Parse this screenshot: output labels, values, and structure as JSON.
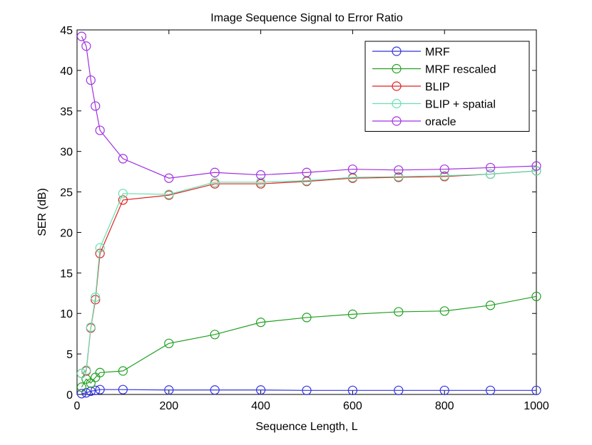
{
  "chart_data": {
    "type": "line",
    "title": "Image Sequence Signal to Error Ratio",
    "xlabel": "Sequence Length, L",
    "ylabel": "SER (dB)",
    "xlim": [
      0,
      1000
    ],
    "ylim": [
      0,
      45
    ],
    "xticks": [
      0,
      200,
      400,
      600,
      800,
      1000
    ],
    "yticks": [
      0,
      5,
      10,
      15,
      20,
      25,
      30,
      35,
      40,
      45
    ],
    "grid": false,
    "legend_position": "top-right",
    "marker": "circle",
    "series": [
      {
        "name": "MRF",
        "color": "#3333dd",
        "x": [
          10,
          20,
          30,
          40,
          50,
          100,
          200,
          300,
          400,
          500,
          600,
          700,
          800,
          900,
          1000
        ],
        "y": [
          0.1,
          0.2,
          0.4,
          0.5,
          0.6,
          0.6,
          0.55,
          0.55,
          0.55,
          0.5,
          0.5,
          0.5,
          0.5,
          0.5,
          0.5
        ]
      },
      {
        "name": "MRF rescaled",
        "color": "#22a022",
        "x": [
          10,
          20,
          30,
          40,
          50,
          100,
          200,
          300,
          400,
          500,
          600,
          700,
          800,
          900,
          1000
        ],
        "y": [
          0.9,
          1.9,
          1.4,
          2.1,
          2.7,
          2.9,
          6.3,
          7.4,
          8.9,
          9.5,
          9.9,
          10.2,
          10.3,
          11.0,
          12.1
        ]
      },
      {
        "name": "BLIP",
        "color": "#e02020",
        "x": [
          10,
          20,
          30,
          40,
          50,
          100,
          200,
          300,
          400,
          500,
          600,
          700,
          800,
          900,
          1000
        ],
        "y": [
          2.6,
          2.9,
          8.2,
          11.7,
          17.4,
          24.0,
          24.6,
          26.0,
          26.0,
          26.3,
          26.7,
          26.8,
          26.9,
          27.2,
          27.6
        ]
      },
      {
        "name": "BLIP + spatial",
        "color": "#66e0b0",
        "x": [
          10,
          20,
          30,
          40,
          50,
          100,
          200,
          300,
          400,
          500,
          600,
          700,
          800,
          900,
          1000
        ],
        "y": [
          2.6,
          3.0,
          8.3,
          12.0,
          18.1,
          24.8,
          24.7,
          26.2,
          26.2,
          26.4,
          26.8,
          26.9,
          27.0,
          27.2,
          27.6
        ]
      },
      {
        "name": "oracle",
        "color": "#a030e0",
        "x": [
          10,
          20,
          30,
          40,
          50,
          100,
          200,
          300,
          400,
          500,
          600,
          700,
          800,
          900,
          1000
        ],
        "y": [
          44.2,
          43.0,
          38.8,
          35.6,
          32.6,
          29.1,
          26.7,
          27.4,
          27.1,
          27.4,
          27.8,
          27.7,
          27.8,
          28.0,
          28.2
        ]
      }
    ]
  }
}
